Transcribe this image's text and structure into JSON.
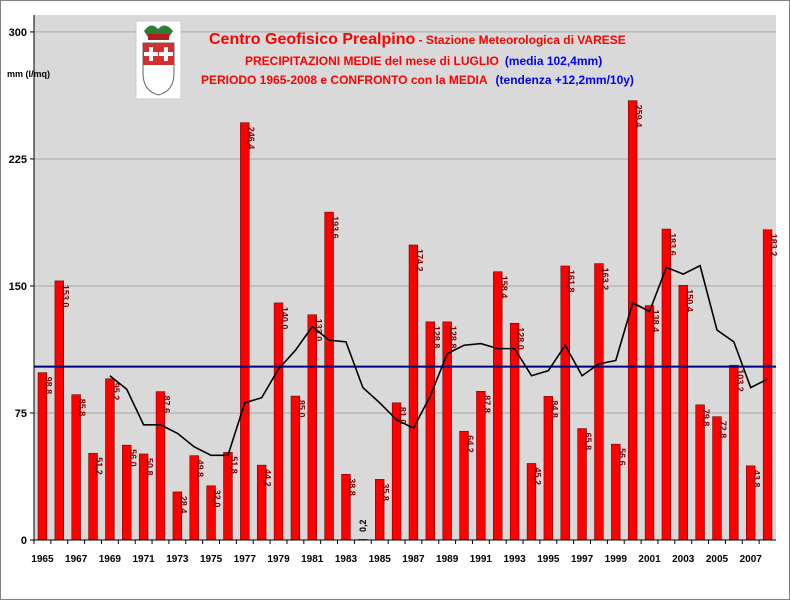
{
  "header": {
    "line1_main": "Centro Geofisico Prealpino",
    "line1_sub": " - Stazione Meteorologica di VARESE",
    "line2_main": "PRECIPITAZIONI MEDIE del mese di LUGLIO",
    "line2_note": "(media 102,4mm)",
    "line3_main": "PERIODO 1965-2008 e CONFRONTO con la MEDIA",
    "line3_note": "(tendenza +12,2mm/10y)"
  },
  "colors": {
    "plot_bg": "#d9d9d9",
    "bar": "#ff0000",
    "bar_border": "#7a0000",
    "mean_line": "#000080",
    "moving_avg": "#000000",
    "title_red": "#ff0000",
    "title_blue": "#0000ff",
    "bar_label": "#800000"
  },
  "chart_data": {
    "type": "bar",
    "ylabel": "mm (l/mq)",
    "ylim": [
      0,
      310
    ],
    "yticks": [
      0,
      75,
      150,
      225,
      300
    ],
    "grid": true,
    "x": [
      1965,
      1966,
      1967,
      1968,
      1969,
      1970,
      1971,
      1972,
      1973,
      1974,
      1975,
      1976,
      1977,
      1978,
      1979,
      1980,
      1981,
      1982,
      1983,
      1984,
      1985,
      1986,
      1987,
      1988,
      1989,
      1990,
      1991,
      1992,
      1993,
      1994,
      1995,
      1996,
      1997,
      1998,
      1999,
      2000,
      2001,
      2002,
      2003,
      2004,
      2005,
      2006,
      2007,
      2008
    ],
    "x_tick_labels": [
      "1965",
      "1967",
      "1969",
      "1971",
      "1973",
      "1975",
      "1977",
      "1979",
      "1981",
      "1983",
      "1985",
      "1987",
      "1989",
      "1991",
      "1993",
      "1995",
      "1997",
      "1999",
      "2001",
      "2003",
      "2005",
      "2007"
    ],
    "values": [
      98.8,
      153.0,
      85.8,
      51.2,
      95.2,
      56.0,
      50.8,
      87.6,
      28.4,
      49.8,
      32.0,
      51.8,
      246.4,
      44.2,
      140.0,
      85.0,
      133.0,
      193.6,
      38.8,
      0.2,
      35.8,
      81.0,
      174.2,
      128.8,
      128.8,
      64.2,
      87.8,
      158.4,
      128.0,
      45.2,
      84.8,
      161.8,
      65.8,
      163.2,
      56.6,
      259.4,
      138.4,
      183.6,
      150.4,
      79.8,
      72.8,
      103.2,
      43.8,
      183.2
    ],
    "value_labels": [
      "98,8",
      "153,0",
      "85,8",
      "51,2",
      "95,2",
      "56,0",
      "50,8",
      "87,6",
      "28,4",
      "49,8",
      "32,0",
      "51,8",
      "246,4",
      "44,2",
      "140,0",
      "85,0",
      "133,0",
      "193,6",
      "38,8",
      "0,2",
      "35,8",
      "81,0",
      "174,2",
      "128,8",
      "128,8",
      "64,2",
      "87,8",
      "158,4",
      "128,0",
      "45,2",
      "84,8",
      "161,8",
      "65,8",
      "163,2",
      "56,6",
      "259,4",
      "138,4",
      "183,6",
      "150,4",
      "79,8",
      "72,8",
      "103,2",
      "43,8",
      "183,2"
    ],
    "mean_value": 102.4,
    "moving_average": {
      "x": [
        1969,
        1970,
        1971,
        1972,
        1973,
        1974,
        1975,
        1976,
        1977,
        1978,
        1979,
        1980,
        1981,
        1982,
        1983,
        1984,
        1985,
        1986,
        1987,
        1988,
        1989,
        1990,
        1991,
        1992,
        1993,
        1994,
        1995,
        1996,
        1997,
        1998,
        1999,
        2000,
        2001,
        2002,
        2003,
        2004,
        2005,
        2006,
        2007,
        2008
      ],
      "values": [
        97,
        89,
        68,
        68,
        63,
        55,
        50,
        50,
        81,
        84,
        101,
        112,
        126,
        118,
        117,
        90,
        81,
        71,
        66,
        85,
        110,
        115,
        116,
        113,
        113,
        97,
        100,
        115,
        97,
        104,
        106,
        140,
        135,
        161,
        157,
        162,
        124,
        117,
        90,
        95
      ]
    }
  }
}
